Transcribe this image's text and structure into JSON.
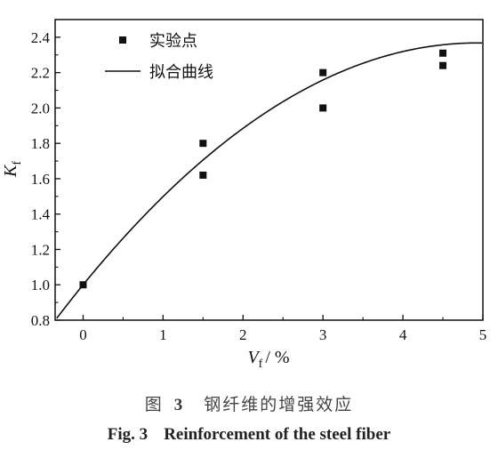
{
  "chart_data": {
    "type": "scatter",
    "xlabel_main": "V",
    "xlabel_sub": "f",
    "xlabel_unit": "/ %",
    "ylabel_main": "K",
    "ylabel_sub": "f",
    "xlim": [
      -0.35,
      5.0
    ],
    "ylim": [
      0.8,
      2.5
    ],
    "xticks": [
      "0",
      "1",
      "2",
      "3",
      "4",
      "5"
    ],
    "yticks": [
      "0.8",
      "1.0",
      "1.2",
      "1.4",
      "1.6",
      "1.8",
      "2.0",
      "2.2",
      "2.4"
    ],
    "series": [
      {
        "name": "实验点",
        "kind": "points",
        "x": [
          0,
          1.5,
          1.5,
          3.0,
          3.0,
          4.5,
          4.5
        ],
        "y": [
          1.0,
          1.8,
          1.62,
          2.2,
          2.0,
          2.31,
          2.24
        ]
      },
      {
        "name": "拟合曲线",
        "kind": "line",
        "model": "quadratic",
        "coefficients": [
          1.0,
          0.555,
          -0.0563
        ]
      }
    ],
    "legend_position": "top-left"
  },
  "caption": {
    "cn_prefix": "图",
    "cn_number": "3",
    "cn_title": "钢纤维的增强效应",
    "en_number": "Fig. 3",
    "en_title": "Reinforcement of the steel fiber"
  }
}
